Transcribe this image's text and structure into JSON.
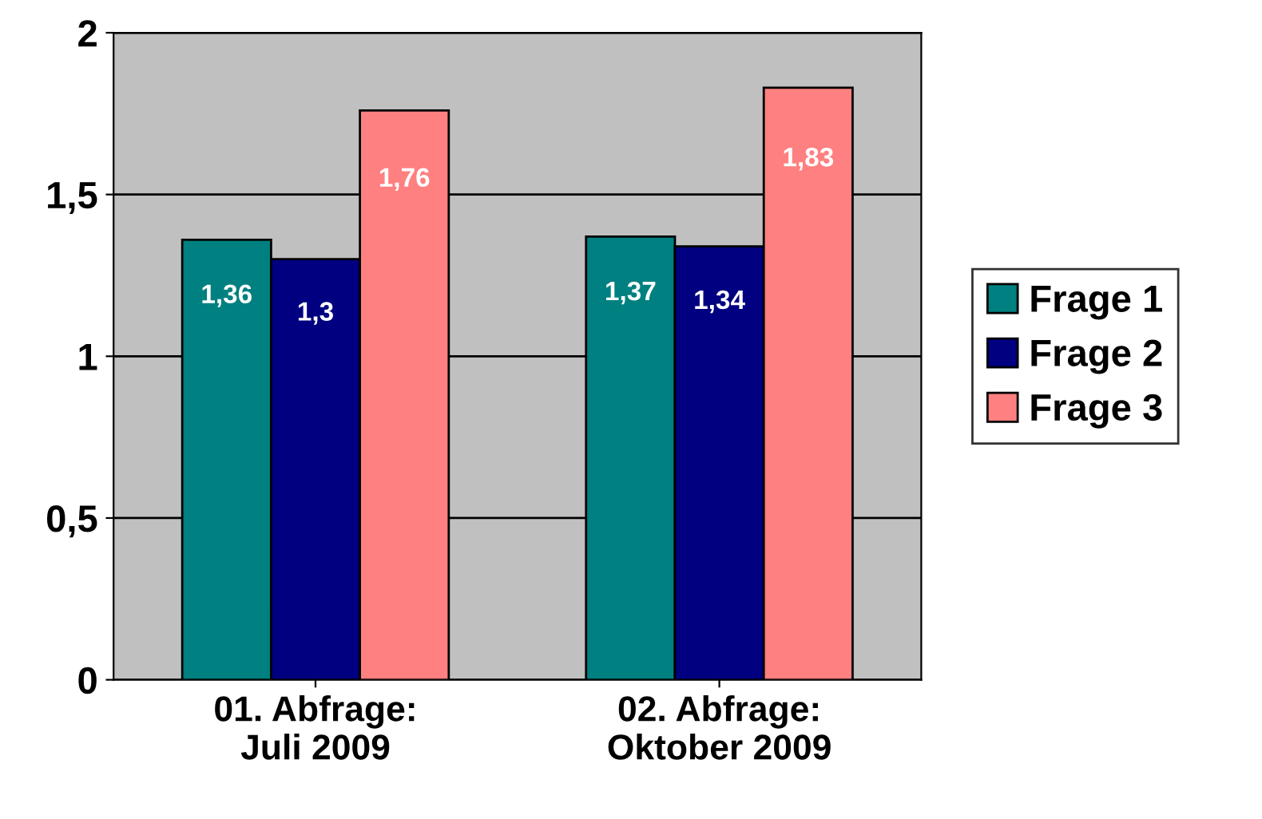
{
  "chart_data": {
    "type": "bar",
    "categories": [
      "01. Abfrage:\nJuli 2009",
      "02. Abfrage:\nOktober 2009"
    ],
    "series": [
      {
        "name": "Frage 1",
        "color": "#008080",
        "values": [
          1.36,
          1.37
        ],
        "value_labels": [
          "1,36",
          "1,37"
        ]
      },
      {
        "name": "Frage 2",
        "color": "#000080",
        "values": [
          1.3,
          1.34
        ],
        "value_labels": [
          "1,3",
          "1,34"
        ]
      },
      {
        "name": "Frage 3",
        "color": "#ff8080",
        "values": [
          1.76,
          1.83
        ],
        "value_labels": [
          "1,76",
          "1,83"
        ]
      }
    ],
    "ylim": [
      0,
      2
    ],
    "yticks": [
      0,
      {
        "value": 0.5,
        "label": "0,5"
      },
      1,
      {
        "value": 1.5,
        "label": "1,5"
      },
      2
    ],
    "grid": "y",
    "legend": "right"
  }
}
